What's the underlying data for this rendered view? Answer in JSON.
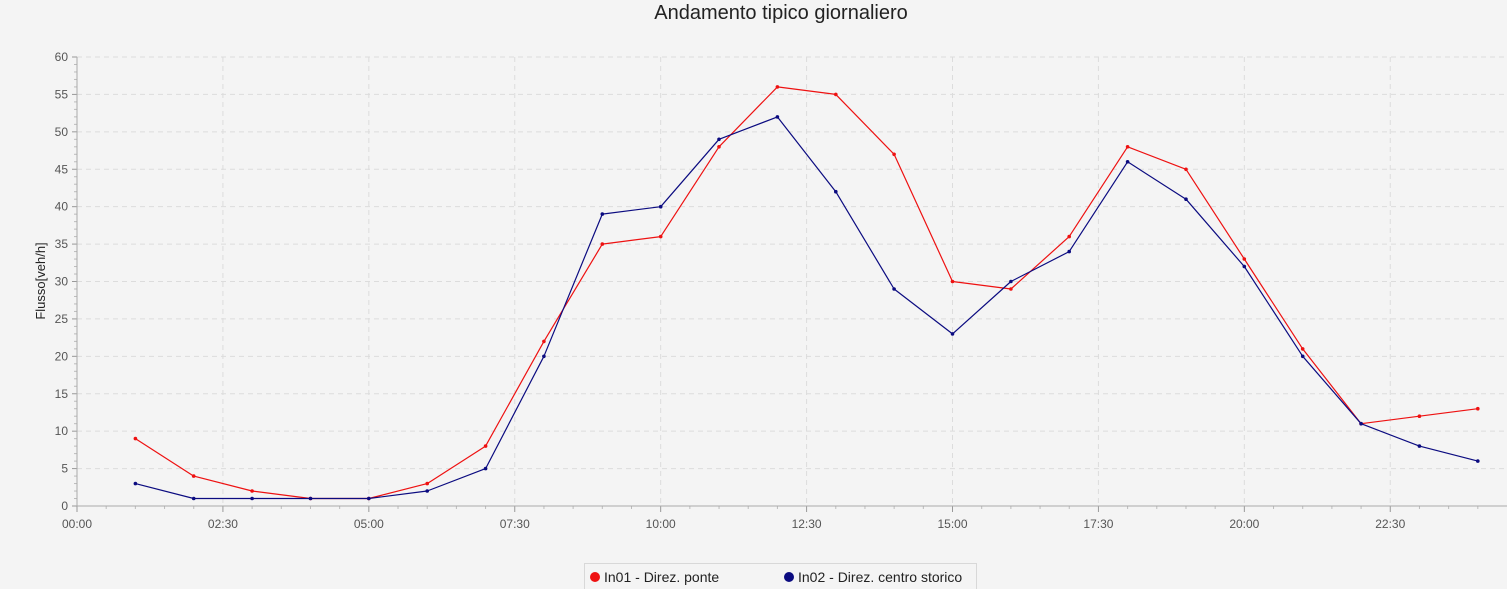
{
  "chart_data": {
    "type": "line",
    "title": "Andamento tipico giornaliero",
    "xlabel": "",
    "ylabel": "Flusso[veh/h]",
    "xlim": [
      "00:00",
      "24:30"
    ],
    "ylim": [
      0,
      60
    ],
    "x_tick_labels": [
      "00:00",
      "02:30",
      "05:00",
      "07:30",
      "10:00",
      "12:30",
      "15:00",
      "17:30",
      "20:00",
      "22:30"
    ],
    "y_tick_labels": [
      "0",
      "5",
      "10",
      "15",
      "20",
      "25",
      "30",
      "35",
      "40",
      "45",
      "50",
      "55",
      "60"
    ],
    "grid": true,
    "legend_position": "bottom",
    "x": [
      "01:00",
      "02:00",
      "03:00",
      "04:00",
      "05:00",
      "06:00",
      "07:00",
      "08:00",
      "09:00",
      "10:00",
      "11:00",
      "12:00",
      "13:00",
      "14:00",
      "15:00",
      "16:00",
      "17:00",
      "18:00",
      "19:00",
      "20:00",
      "21:00",
      "22:00",
      "23:00",
      "24:00"
    ],
    "series": [
      {
        "name": "In01 - Direz. ponte",
        "color": "#ee1111",
        "values": [
          9,
          4,
          2,
          1,
          1,
          3,
          8,
          22,
          35,
          36,
          48,
          56,
          55,
          47,
          30,
          29,
          36,
          48,
          45,
          33,
          21,
          11,
          12,
          13
        ]
      },
      {
        "name": "In02 - Direz. centro storico",
        "color": "#0b0b80",
        "values": [
          3,
          1,
          1,
          1,
          1,
          2,
          5,
          20,
          39,
          40,
          49,
          52,
          42,
          29,
          23,
          30,
          34,
          46,
          41,
          32,
          20,
          11,
          8,
          6
        ]
      }
    ]
  }
}
